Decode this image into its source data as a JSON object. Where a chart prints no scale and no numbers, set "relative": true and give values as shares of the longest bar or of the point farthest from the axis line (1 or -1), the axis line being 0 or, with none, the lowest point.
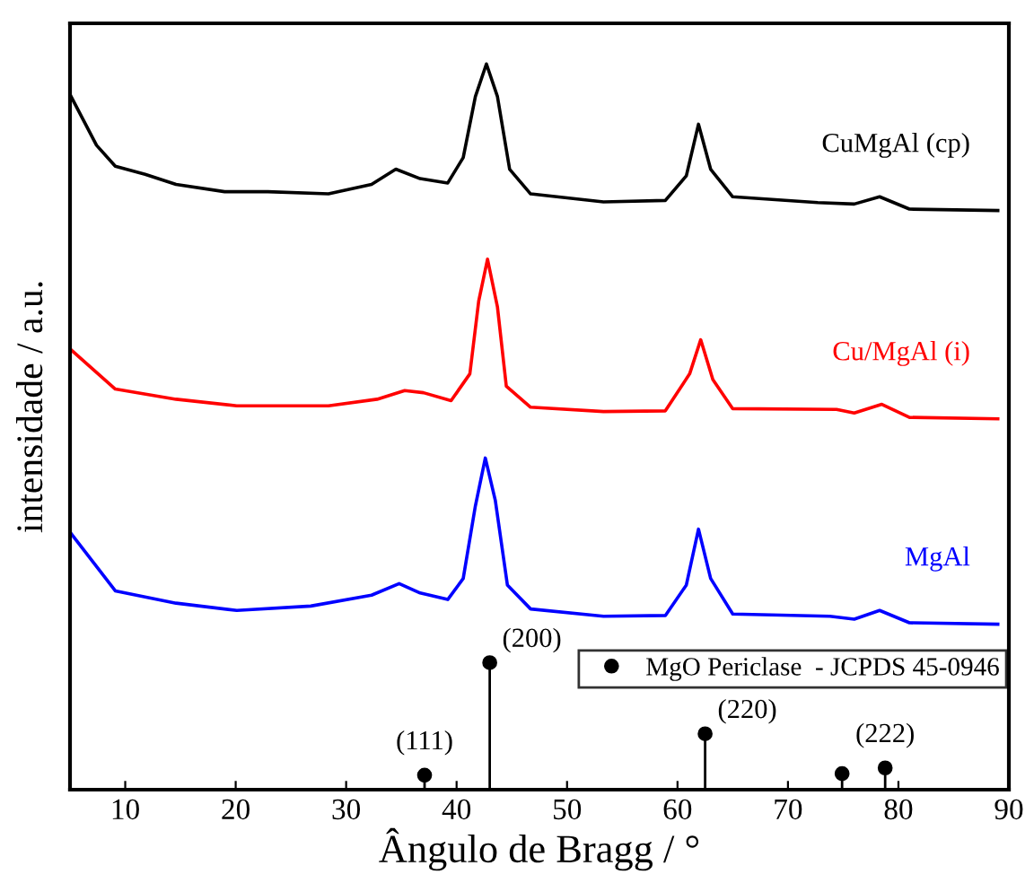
{
  "chart_data": {
    "type": "line",
    "relative": true,
    "xlabel": "Ângulo de Bragg / °",
    "ylabel": "intensidade / a.u.",
    "xlim": [
      5,
      90
    ],
    "xticks": [
      10,
      20,
      30,
      40,
      50,
      60,
      70,
      80,
      90
    ],
    "tick_labels": "x",
    "grid": false,
    "legend": "bottom right",
    "line_style": "solid",
    "marker": "none",
    "series": [
      {
        "name": "CuMgAl (cp)",
        "color": "#000000",
        "x": [
          5.1,
          7.4,
          9.1,
          11.8,
          14.6,
          19.0,
          22.9,
          28.4,
          32.3,
          34.5,
          36.7,
          39.2,
          40.6,
          41.7,
          42.7,
          43.7,
          44.8,
          46.7,
          53.3,
          58.9,
          60.8,
          61.9,
          63.0,
          65.0,
          72.7,
          76.0,
          78.3,
          81.0,
          89.0
        ],
        "values": [
          0.955,
          0.888,
          0.859,
          0.848,
          0.834,
          0.824,
          0.824,
          0.821,
          0.834,
          0.855,
          0.842,
          0.836,
          0.871,
          0.955,
          1.0,
          0.955,
          0.855,
          0.821,
          0.81,
          0.812,
          0.846,
          0.917,
          0.855,
          0.817,
          0.809,
          0.807,
          0.817,
          0.8,
          0.798
        ]
      },
      {
        "name": "Cu/MgAl (i)",
        "color": "#ff0000",
        "x": [
          5.1,
          9.1,
          14.6,
          20.1,
          28.4,
          32.8,
          35.3,
          37.0,
          39.5,
          41.2,
          42.0,
          42.8,
          43.7,
          44.5,
          46.7,
          53.3,
          58.9,
          61.1,
          62.1,
          63.2,
          65.0,
          74.4,
          76.0,
          78.5,
          81.0,
          89.0
        ],
        "values": [
          0.606,
          0.552,
          0.538,
          0.529,
          0.529,
          0.538,
          0.55,
          0.547,
          0.536,
          0.573,
          0.673,
          0.731,
          0.665,
          0.556,
          0.527,
          0.521,
          0.522,
          0.573,
          0.62,
          0.565,
          0.525,
          0.524,
          0.519,
          0.531,
          0.513,
          0.511
        ]
      },
      {
        "name": "MgAl",
        "color": "#0000ff",
        "x": [
          5.1,
          9.1,
          14.6,
          20.1,
          26.8,
          32.3,
          34.8,
          36.7,
          39.2,
          40.6,
          41.7,
          42.6,
          43.5,
          44.6,
          46.7,
          53.3,
          58.9,
          60.8,
          61.9,
          63.0,
          65.0,
          73.8,
          76.0,
          78.3,
          81.0,
          89.0
        ],
        "values": [
          0.353,
          0.274,
          0.257,
          0.247,
          0.253,
          0.268,
          0.284,
          0.271,
          0.262,
          0.291,
          0.391,
          0.457,
          0.399,
          0.282,
          0.249,
          0.239,
          0.24,
          0.282,
          0.359,
          0.291,
          0.242,
          0.239,
          0.235,
          0.247,
          0.23,
          0.228
        ]
      },
      {
        "name": "MgO Periclase  - JCPDS 45-0946",
        "type": "lollipop",
        "marker": "circle",
        "color": "#000000",
        "x": [
          37.1,
          43.0,
          62.5,
          74.9,
          78.8
        ],
        "values": [
          0.02,
          0.175,
          0.077,
          0.022,
          0.03
        ]
      }
    ],
    "annotations": [
      {
        "text": "(111)",
        "x": 37.1,
        "y": 0.02
      },
      {
        "text": "(200)",
        "x": 43.0,
        "y": 0.175
      },
      {
        "text": "(220)",
        "x": 62.5,
        "y": 0.077
      },
      {
        "text": "(222)",
        "x": 78.8,
        "y": 0.03
      }
    ]
  }
}
